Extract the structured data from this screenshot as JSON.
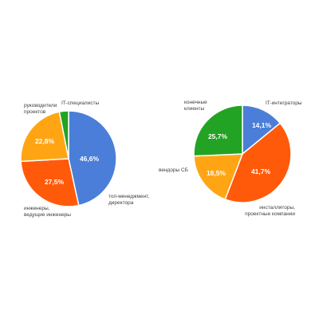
{
  "chart_data": [
    {
      "type": "pie",
      "title": "",
      "slices": [
        {
          "label": "топ-менеджмент, директора",
          "value": 46.6,
          "value_label": "46,6%",
          "color": "#4a7ed8"
        },
        {
          "label": "инженеры, ведущие инженеры",
          "value": 27.5,
          "value_label": "27,5%",
          "color": "#ff5a0a"
        },
        {
          "label": "руководители проектов",
          "value": 22.8,
          "value_label": "22,8%",
          "color": "#ffa514"
        },
        {
          "label": "IT-специалисты",
          "value": 3.1,
          "value_label": "",
          "color": "#23a323"
        }
      ]
    },
    {
      "type": "pie",
      "title": "",
      "slices": [
        {
          "label": "IT-интеграторы",
          "value": 14.1,
          "value_label": "14,1%",
          "color": "#4a7ed8"
        },
        {
          "label": "инсталляторы, проектные компании",
          "value": 41.7,
          "value_label": "41,7%",
          "color": "#ff5a0a"
        },
        {
          "label": "вендоры СБ",
          "value": 18.5,
          "value_label": "18,5%",
          "color": "#ffa514"
        },
        {
          "label": "конечные клиенты",
          "value": 25.7,
          "value_label": "25,7%",
          "color": "#23a323"
        }
      ]
    }
  ]
}
